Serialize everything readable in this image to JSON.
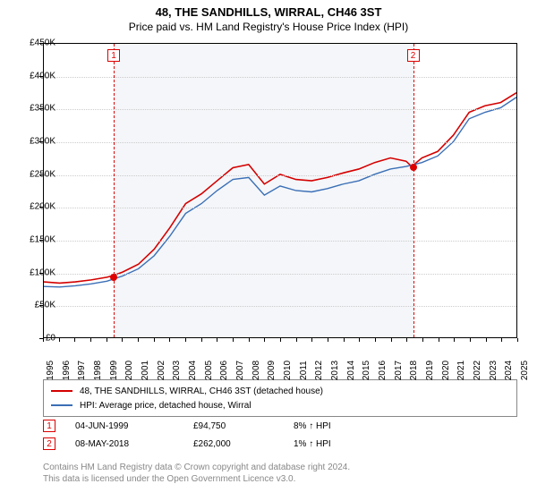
{
  "title": "48, THE SANDHILLS, WIRRAL, CH46 3ST",
  "subtitle": "Price paid vs. HM Land Registry's House Price Index (HPI)",
  "chart": {
    "type": "line",
    "background_color": "#ffffff",
    "shaded_band_color": "#f4f6f9",
    "grid_color": "#cccccc",
    "ylim": [
      0,
      450000
    ],
    "ytick_step": 50000,
    "ytick_labels": [
      "£0",
      "£50K",
      "£100K",
      "£150K",
      "£200K",
      "£250K",
      "£300K",
      "£350K",
      "£400K",
      "£450K"
    ],
    "x_years": [
      1995,
      1996,
      1997,
      1998,
      1999,
      2000,
      2001,
      2002,
      2003,
      2004,
      2005,
      2006,
      2007,
      2008,
      2009,
      2010,
      2011,
      2012,
      2013,
      2014,
      2015,
      2016,
      2017,
      2018,
      2019,
      2020,
      2021,
      2022,
      2023,
      2024,
      2025
    ],
    "shaded_from_year": 1999.42,
    "shaded_to_year": 2018.35,
    "series": [
      {
        "name": "property",
        "label": "48, THE SANDHILLS, WIRRAL, CH46 3ST (detached house)",
        "color": "#d40000",
        "line_width": 1.6,
        "points": [
          [
            1995,
            85000
          ],
          [
            1996,
            83000
          ],
          [
            1997,
            85000
          ],
          [
            1998,
            88000
          ],
          [
            1999,
            92000
          ],
          [
            1999.42,
            94750
          ],
          [
            2000,
            100000
          ],
          [
            2001,
            112000
          ],
          [
            2002,
            135000
          ],
          [
            2003,
            168000
          ],
          [
            2004,
            205000
          ],
          [
            2005,
            220000
          ],
          [
            2006,
            240000
          ],
          [
            2007,
            260000
          ],
          [
            2008,
            265000
          ],
          [
            2009,
            235000
          ],
          [
            2010,
            250000
          ],
          [
            2011,
            242000
          ],
          [
            2012,
            240000
          ],
          [
            2013,
            245000
          ],
          [
            2014,
            252000
          ],
          [
            2015,
            258000
          ],
          [
            2016,
            268000
          ],
          [
            2017,
            275000
          ],
          [
            2018,
            270000
          ],
          [
            2018.35,
            262000
          ],
          [
            2019,
            275000
          ],
          [
            2020,
            285000
          ],
          [
            2021,
            310000
          ],
          [
            2022,
            345000
          ],
          [
            2023,
            355000
          ],
          [
            2024,
            360000
          ],
          [
            2025,
            375000
          ]
        ]
      },
      {
        "name": "hpi",
        "label": "HPI: Average price, detached house, Wirral",
        "color": "#3b6fb6",
        "line_width": 1.4,
        "points": [
          [
            1995,
            78000
          ],
          [
            1996,
            77000
          ],
          [
            1997,
            79000
          ],
          [
            1998,
            82000
          ],
          [
            1999,
            86000
          ],
          [
            2000,
            94000
          ],
          [
            2001,
            105000
          ],
          [
            2002,
            125000
          ],
          [
            2003,
            155000
          ],
          [
            2004,
            190000
          ],
          [
            2005,
            205000
          ],
          [
            2006,
            225000
          ],
          [
            2007,
            242000
          ],
          [
            2008,
            245000
          ],
          [
            2009,
            218000
          ],
          [
            2010,
            232000
          ],
          [
            2011,
            225000
          ],
          [
            2012,
            223000
          ],
          [
            2013,
            228000
          ],
          [
            2014,
            235000
          ],
          [
            2015,
            240000
          ],
          [
            2016,
            250000
          ],
          [
            2017,
            258000
          ],
          [
            2018,
            262000
          ],
          [
            2019,
            268000
          ],
          [
            2020,
            278000
          ],
          [
            2021,
            300000
          ],
          [
            2022,
            335000
          ],
          [
            2023,
            345000
          ],
          [
            2024,
            352000
          ],
          [
            2025,
            368000
          ]
        ]
      }
    ],
    "sale_markers": [
      {
        "num": "1",
        "year": 1999.42,
        "price": 94750
      },
      {
        "num": "2",
        "year": 2018.35,
        "price": 262000
      }
    ]
  },
  "legend": {
    "items": [
      {
        "color": "#d40000",
        "label": "48, THE SANDHILLS, WIRRAL, CH46 3ST (detached house)"
      },
      {
        "color": "#3b6fb6",
        "label": "HPI: Average price, detached house, Wirral"
      }
    ]
  },
  "sales": [
    {
      "num": "1",
      "date": "04-JUN-1999",
      "price": "£94,750",
      "delta": "8% ↑ HPI"
    },
    {
      "num": "2",
      "date": "08-MAY-2018",
      "price": "£262,000",
      "delta": "1% ↑ HPI"
    }
  ],
  "footer": {
    "line1": "Contains HM Land Registry data © Crown copyright and database right 2024.",
    "line2": "This data is licensed under the Open Government Licence v3.0."
  }
}
